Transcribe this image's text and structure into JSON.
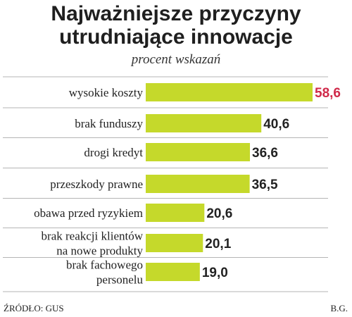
{
  "chart_data": {
    "type": "bar",
    "orientation": "horizontal",
    "title": [
      "Najważniejsze przyczyny",
      "utrudniające innowacje"
    ],
    "subtitle": "procent wskazań",
    "categories": [
      [
        "wysokie koszty"
      ],
      [
        "brak funduszy"
      ],
      [
        "drogi kredyt"
      ],
      [
        "przeszkody prawne"
      ],
      [
        "obawa przed ryzykiem"
      ],
      [
        "brak reakcji klientów",
        "na nowe produkty"
      ],
      [
        "brak fachowego",
        "personelu"
      ]
    ],
    "values": [
      58.6,
      40.6,
      36.6,
      36.5,
      20.6,
      20.1,
      19.0
    ],
    "value_labels": [
      "58,6",
      "40,6",
      "36,6",
      "36,5",
      "20,6",
      "20,1",
      "19,0"
    ],
    "highlight_index": 0,
    "xlim": [
      0,
      58.6
    ],
    "grid": false,
    "legend": "none",
    "source": "ŹRÓDŁO: GUS",
    "author": "B.G."
  },
  "colors": {
    "bar": "#c5d92b",
    "value_text": "#222222",
    "highlight_text": "#d02a4a",
    "separator": "#b5b5b5",
    "category_text": "#222222"
  }
}
